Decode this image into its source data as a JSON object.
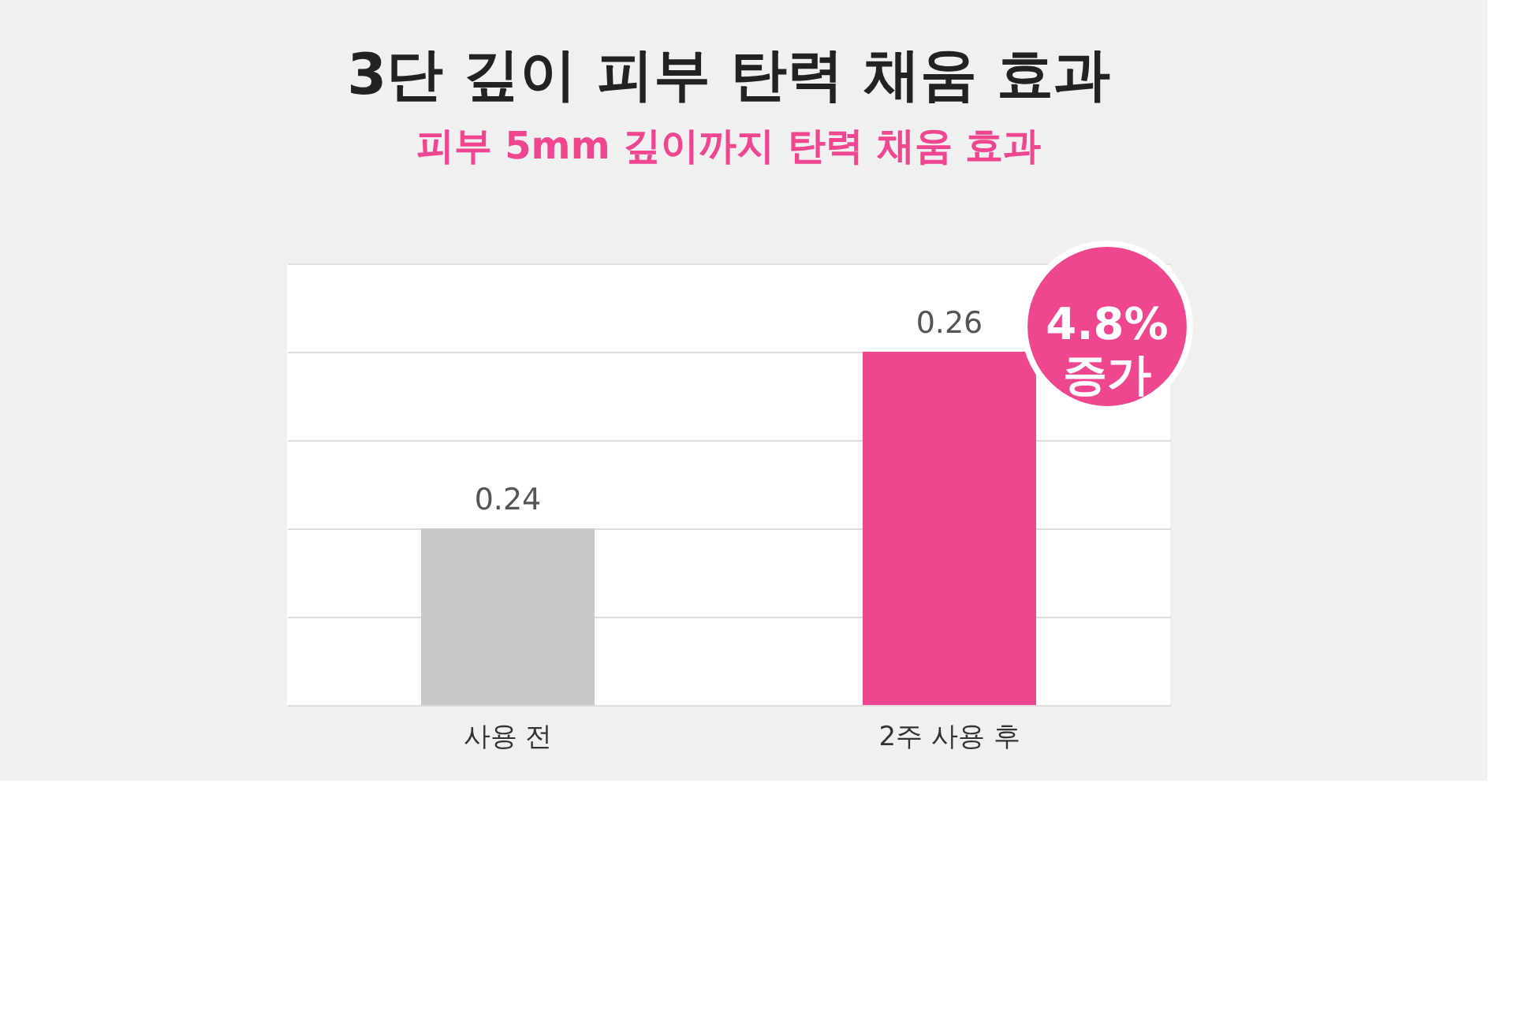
{
  "chart_data": {
    "type": "bar",
    "title": "3단 깊이 피부 탄력 채움 효과",
    "subtitle": "피부 5mm 깊이까지 탄력 채움 효과",
    "categories": [
      "사용 전",
      "2주 사용 후"
    ],
    "values": [
      0.24,
      0.26
    ],
    "colors": [
      "#c8c8c8",
      "#f0468f"
    ],
    "data_labels": true,
    "ylim": [
      0.22,
      0.27
    ],
    "yticks": [
      {
        "value": 0.22,
        "label": null
      },
      {
        "value": 0.23,
        "label": null
      },
      {
        "value": 0.24,
        "label": null
      },
      {
        "value": 0.25,
        "label": null
      },
      {
        "value": 0.26,
        "label": null
      },
      {
        "value": 0.27,
        "label": null
      }
    ],
    "grid": "y",
    "annotations": [
      "4.8% 증가"
    ]
  }
}
